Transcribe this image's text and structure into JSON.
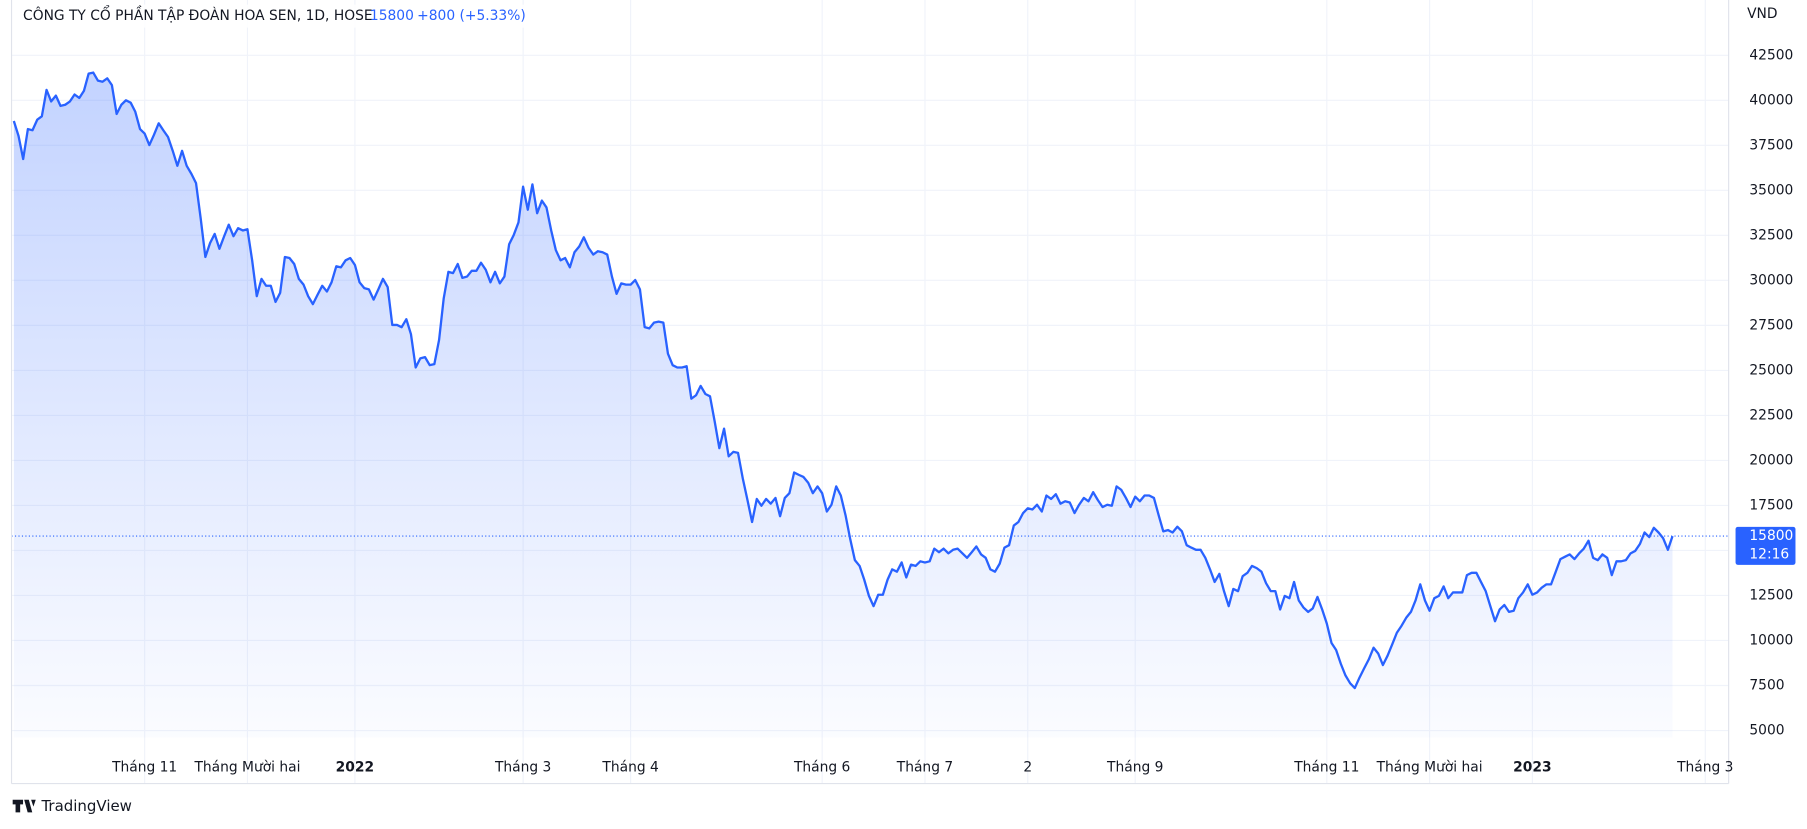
{
  "chart_data": {
    "type": "line",
    "title": "CÔNG TY CỔ PHẦN TẬP ĐOÀN HOA SEN, 1D, HOSE",
    "price": 15800,
    "change": "+800 (+5.33%)",
    "time": "12:16",
    "y_unit": "VND",
    "brand": "TradingView",
    "color": "#2962ff",
    "grid": true,
    "ylim": [
      4100,
      45570
    ],
    "yticks": [
      5000,
      7500,
      10000,
      12500,
      15000,
      17500,
      20000,
      22500,
      25000,
      27500,
      30000,
      32500,
      35000,
      37500,
      40000,
      42500
    ],
    "xlim": [
      0,
      367
    ],
    "xticks": [
      {
        "value": 28,
        "label": "Tháng 11"
      },
      {
        "value": 50,
        "label": "Tháng Mười hai"
      },
      {
        "value": 73,
        "label": "2022"
      },
      {
        "value": 109,
        "label": "Tháng 3"
      },
      {
        "value": 132,
        "label": "Tháng 4"
      },
      {
        "value": 173,
        "label": "Tháng 6"
      },
      {
        "value": 195,
        "label": "Tháng 7"
      },
      {
        "value": 217,
        "label": "2"
      },
      {
        "value": 240,
        "label": "Tháng 9"
      },
      {
        "value": 281,
        "label": "Tháng 11"
      },
      {
        "value": 303,
        "label": "Tháng Mười hai"
      },
      {
        "value": 325,
        "label": "2023"
      },
      {
        "value": 362,
        "label": "Tháng 3"
      }
    ],
    "values": [
      38850,
      38020,
      36740,
      38400,
      38340,
      38920,
      39110,
      40580,
      39940,
      40260,
      39690,
      39750,
      39940,
      40320,
      40130,
      40520,
      41480,
      41540,
      41090,
      41030,
      41220,
      40840,
      39240,
      39750,
      40000,
      39870,
      39360,
      38400,
      38150,
      37510,
      38080,
      38720,
      38340,
      37960,
      37190,
      36360,
      37190,
      36360,
      35910,
      35400,
      33410,
      31300,
      32070,
      32580,
      31750,
      32450,
      33090,
      32450,
      32900,
      32770,
      32840,
      31110,
      29120,
      30080,
      29700,
      29700,
      28800,
      29310,
      31300,
      31240,
      30910,
      30080,
      29760,
      29120,
      28680,
      29190,
      29700,
      29380,
      29890,
      30780,
      30720,
      31110,
      31240,
      30850,
      29890,
      29570,
      29500,
      28930,
      29500,
      30080,
      29630,
      27520,
      27520,
      27400,
      27840,
      27010,
      25160,
      25670,
      25740,
      25290,
      25350,
      26690,
      28990,
      30470,
      30400,
      30910,
      30140,
      30210,
      30530,
      30530,
      30980,
      30590,
      29890,
      30470,
      29830,
      30210,
      32000,
      32520,
      33220,
      35200,
      33920,
      35330,
      33730,
      34430,
      34050,
      32770,
      31680,
      31110,
      31240,
      30720,
      31560,
      31880,
      32390,
      31810,
      31430,
      31620,
      31560,
      31430,
      30210,
      29250,
      29830,
      29760,
      29760,
      30020,
      29500,
      27400,
      27330,
      27650,
      27710,
      27650,
      25930,
      25290,
      25160,
      25160,
      25230,
      23430,
      23620,
      24140,
      23690,
      23560,
      22150,
      20680,
      21760,
      20230,
      20480,
      20420,
      19010,
      17800,
      16580,
      17860,
      17480,
      17860,
      17600,
      17920,
      16900,
      17920,
      18180,
      19330,
      19200,
      19080,
      18760,
      18180,
      18560,
      18180,
      17160,
      17540,
      18560,
      18050,
      16960,
      15620,
      14460,
      14140,
      13380,
      12480,
      11910,
      12540,
      12540,
      13380,
      13950,
      13820,
      14330,
      13500,
      14210,
      14140,
      14400,
      14330,
      14400,
      15100,
      14900,
      15100,
      14840,
      15040,
      15100,
      14840,
      14590,
      14900,
      15220,
      14780,
      14590,
      13950,
      13820,
      14270,
      15160,
      15290,
      16380,
      16580,
      17080,
      17340,
      17280,
      17540,
      17160,
      18050,
      17860,
      18120,
      17600,
      17730,
      17660,
      17080,
      17540,
      17920,
      17730,
      18240,
      17800,
      17410,
      17540,
      17480,
      18560,
      18370,
      17920,
      17410,
      17990,
      17730,
      18050,
      18050,
      17920,
      16960,
      16060,
      16130,
      16000,
      16320,
      16060,
      15290,
      15160,
      15040,
      15040,
      14590,
      13950,
      13250,
      13700,
      12740,
      11910,
      12860,
      12740,
      13570,
      13760,
      14140,
      14020,
      13820,
      13180,
      12740,
      12740,
      11720,
      12480,
      12350,
      13250,
      12220,
      11840,
      11590,
      11780,
      12420,
      11720,
      10940,
      9860,
      9470,
      8700,
      8060,
      7620,
      7360,
      7940,
      8450,
      8960,
      9600,
      9280,
      8640,
      9150,
      9790,
      10430,
      10820,
      11260,
      11590,
      12220,
      13120,
      12220,
      11650,
      12350,
      12480,
      13000,
      12350,
      12670,
      12670,
      12670,
      13630,
      13760,
      13760,
      13250,
      12740,
      11910,
      11070,
      11720,
      11970,
      11590,
      11650,
      12350,
      12670,
      13120,
      12540,
      12670,
      12930,
      13120,
      13120,
      13820,
      14520,
      14650,
      14780,
      14520,
      14840,
      15100,
      15540,
      14590,
      14460,
      14780,
      14590,
      13630,
      14400,
      14400,
      14460,
      14840,
      14970,
      15360,
      16000,
      15740,
      16260,
      16000,
      15680,
      15040,
      15800
    ]
  }
}
